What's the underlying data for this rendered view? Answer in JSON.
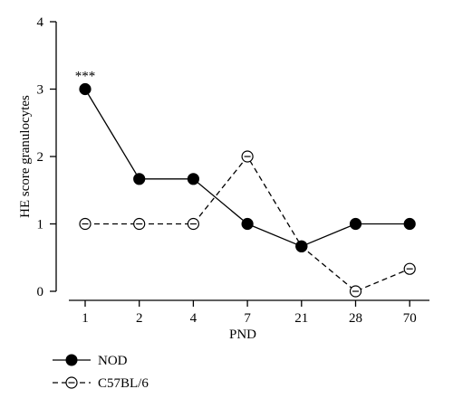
{
  "chart_data": {
    "type": "line",
    "categories": [
      "1",
      "2",
      "4",
      "7",
      "21",
      "28",
      "70"
    ],
    "xlabel": "PND",
    "ylabel": "HE score granulocytes",
    "ylim": [
      0,
      4
    ],
    "yticks": [
      "0",
      "1",
      "2",
      "3",
      "4"
    ],
    "grid": false,
    "legend_position": "bottom-left",
    "series": [
      {
        "name": "NOD",
        "values": [
          3,
          1.667,
          1.667,
          1,
          0.667,
          1,
          1
        ],
        "marker": "filled-circle",
        "line_style": "solid",
        "color": "#000000"
      },
      {
        "name": "C57BL/6",
        "values": [
          1,
          1,
          1,
          2,
          0.667,
          0,
          0.333
        ],
        "marker": "open-circle",
        "line_style": "dashed",
        "color": "#000000"
      }
    ],
    "annotations": [
      {
        "category": "1",
        "series": "NOD",
        "text": "***"
      }
    ]
  }
}
